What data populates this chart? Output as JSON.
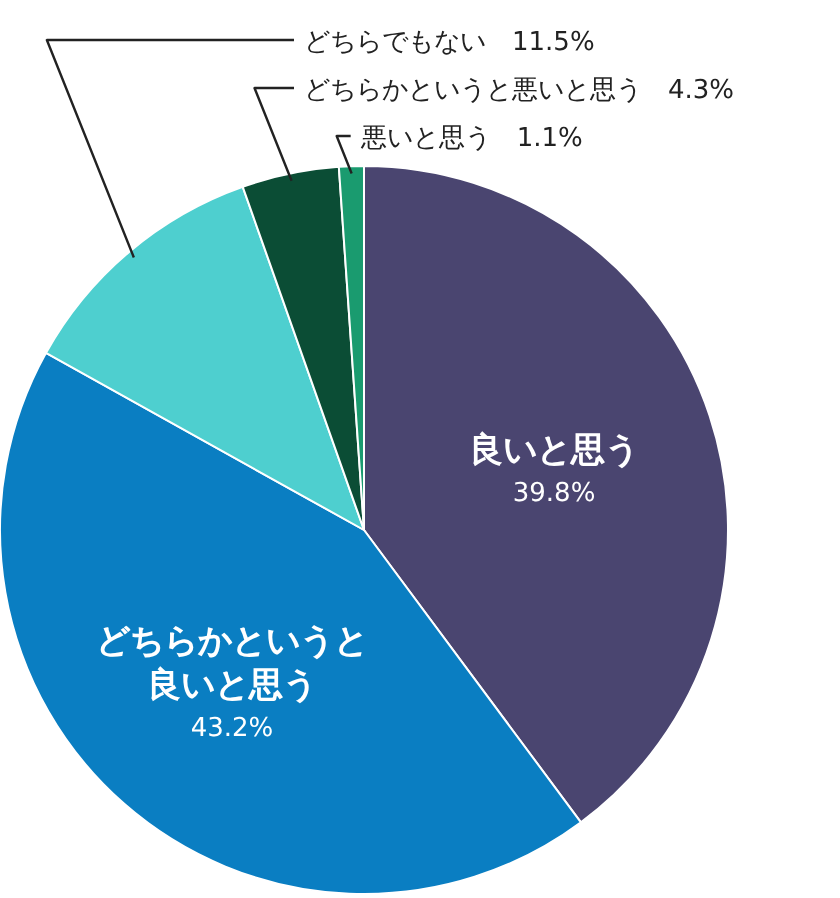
{
  "chart_data": {
    "type": "pie",
    "categories": [
      "良いと思う",
      "どちらかというと良いと思う",
      "どちらでもない",
      "どちらかというと悪いと思う",
      "悪いと思う"
    ],
    "values": [
      39.8,
      43.2,
      11.5,
      4.3,
      1.1
    ],
    "colors": [
      "#4a4570",
      "#0a7ec2",
      "#4ecfcf",
      "#0b4d35",
      "#1a9b6f"
    ],
    "value_labels": [
      "39.8%",
      "43.2%",
      "11.5%",
      "4.3%",
      "1.1%"
    ],
    "legend": false
  }
}
